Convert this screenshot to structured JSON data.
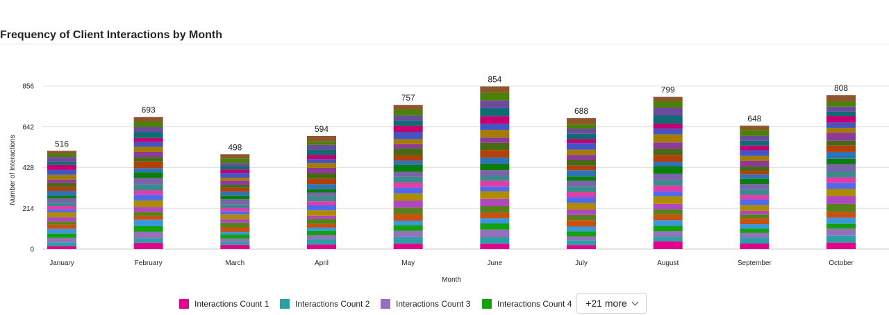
{
  "title": "Frequency of Client Interactions by Month",
  "chart_data": {
    "type": "bar",
    "stacked": true,
    "categories": [
      "January",
      "February",
      "March",
      "April",
      "May",
      "June",
      "July",
      "August",
      "September",
      "October"
    ],
    "totals": [
      516,
      693,
      498,
      594,
      757,
      854,
      688,
      799,
      648,
      808
    ],
    "xlabel": "Month",
    "ylabel": "Number of Interactions",
    "yticks": [
      0,
      214,
      428,
      642,
      856
    ],
    "ylim": [
      0,
      856
    ],
    "grid": true,
    "series_count": 25,
    "legend_position": "bottom",
    "legend": [
      {
        "name": "Interactions Count 1",
        "color": "#e3008c"
      },
      {
        "name": "Interactions Count 2",
        "color": "#2aa0a4"
      },
      {
        "name": "Interactions Count 3",
        "color": "#9470bd"
      },
      {
        "name": "Interactions Count 4",
        "color": "#13a10e"
      }
    ],
    "palette": [
      "#e3008c",
      "#2aa0a4",
      "#9470bd",
      "#13a10e",
      "#3a96dd",
      "#ca5010",
      "#57811b",
      "#b146c2",
      "#ae8c00",
      "#4f6bed",
      "#e43ba6",
      "#3c8a8c",
      "#7a63a8",
      "#0c7c0c",
      "#2e74b5",
      "#b24008",
      "#476a15",
      "#8d3a9c",
      "#a47c00",
      "#4255c5",
      "#c2006f",
      "#0f6c72",
      "#6e4a9e",
      "#498205",
      "#8e562e"
    ]
  },
  "legend_more": {
    "label": "+21 more",
    "icon": "chevron-down-icon"
  }
}
